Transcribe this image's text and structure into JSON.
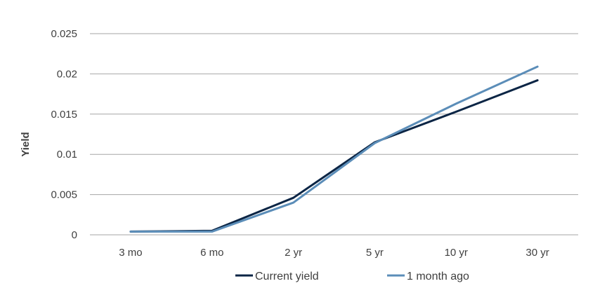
{
  "chart_data": {
    "type": "line",
    "title": "",
    "xlabel": "",
    "ylabel": "Yield",
    "categories": [
      "3 mo",
      "6 mo",
      "2 yr",
      "5 yr",
      "10 yr",
      "30 yr"
    ],
    "y_ticks": [
      "0",
      "0.005",
      "0.01",
      "0.015",
      "0.02",
      "0.025"
    ],
    "ylim": [
      0,
      0.025
    ],
    "grid": true,
    "legend_position": "bottom",
    "series": [
      {
        "name": "Current yield",
        "color": "#0b2545",
        "values": [
          0.0004,
          0.0005,
          0.0046,
          0.0115,
          0.0153,
          0.0192
        ]
      },
      {
        "name": "1 month ago",
        "color": "#5b8db8",
        "values": [
          0.0004,
          0.0004,
          0.004,
          0.0114,
          0.0163,
          0.0209
        ]
      }
    ],
    "gridline_color": "#a6a6a6"
  }
}
